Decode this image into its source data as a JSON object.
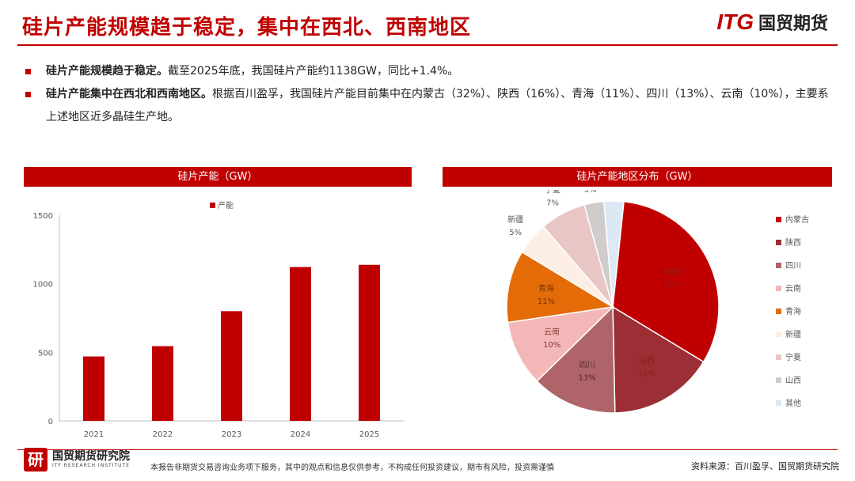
{
  "header": {
    "title": "硅片产能规模趋于稳定，集中在西北、西南地区",
    "logo_en": "ITG",
    "logo_cn": "国贸期货"
  },
  "bullets": [
    {
      "bold": "硅片产能规模趋于稳定。",
      "text": "截至2025年底，我国硅片产能约1138GW，同比+1.4%。"
    },
    {
      "bold": "硅片产能集中在西北和西南地区。",
      "text": "根据百川盈孚，我国硅片产能目前集中在内蒙古（32%）、陕西（16%）、青海（11%）、四川（13%）、云南（10%），主要系上述地区近多晶硅生产地。"
    }
  ],
  "chart_data": [
    {
      "type": "bar",
      "title": "硅片产能（GW）",
      "legend": [
        "产能"
      ],
      "categories": [
        "2021",
        "2022",
        "2023",
        "2024",
        "2025"
      ],
      "values": [
        470,
        545,
        800,
        1122,
        1138
      ],
      "yticks": [
        "0",
        "500",
        "1000",
        "1500"
      ],
      "ylim": [
        0,
        1500
      ],
      "color": "#c00000"
    },
    {
      "type": "pie",
      "title": "硅片产能地区分布（GW）",
      "labels": [
        "内蒙古",
        "陕西",
        "四川",
        "云南",
        "青海",
        "新疆",
        "宁夏",
        "山西",
        "其他"
      ],
      "values": [
        32,
        16,
        13,
        10,
        11,
        5,
        7,
        3,
        3
      ],
      "pct_labels": [
        "32%",
        "16%",
        "13%",
        "10%",
        "11%",
        "5%",
        "7%",
        "3%",
        "3%"
      ],
      "colors": [
        "#c00000",
        "#9b2f35",
        "#ae6468",
        "#f4b7b8",
        "#e36c09",
        "#fdeee3",
        "#e8c6c5",
        "#d0cccc",
        "#dde8f5"
      ]
    }
  ],
  "footer": {
    "logo_mark": "研",
    "org_cn": "国贸期货研究院",
    "org_en": "ITF RESEARCH INSTITUTE",
    "disclaimer": "本报告非期货交易咨询业务项下服务，其中的观点和信息仅供参考，不构成任何投资建议，期市有风险，投资需谨慎",
    "source": "资料来源：百川盈孚、国贸期货研究院"
  }
}
